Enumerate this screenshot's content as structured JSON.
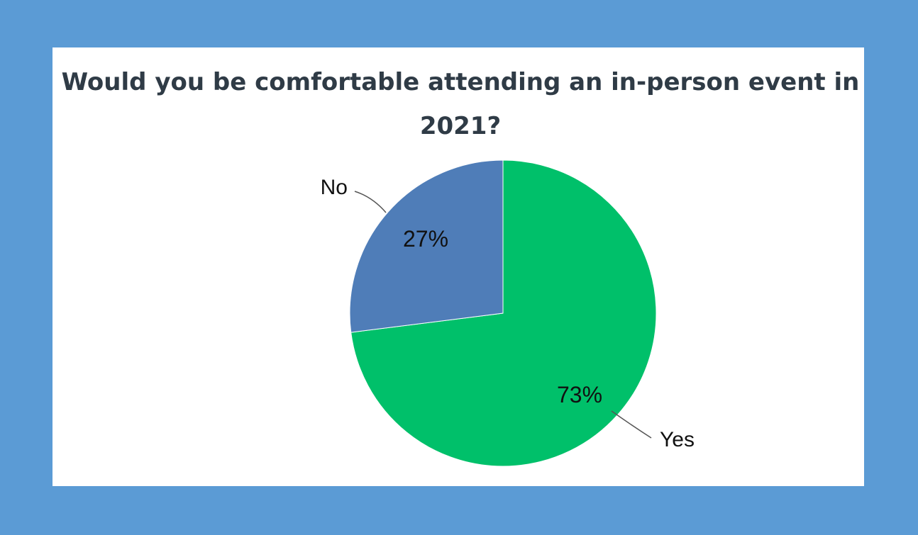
{
  "chart_data": {
    "type": "pie",
    "title": "Would you be comfortable attending an in-person event in 2021?",
    "categories": [
      "Yes",
      "No"
    ],
    "values": [
      73,
      27
    ],
    "value_labels": [
      "73%",
      "27%"
    ],
    "colors": [
      "#00c06a",
      "#4f7db8"
    ],
    "legend": "none"
  }
}
